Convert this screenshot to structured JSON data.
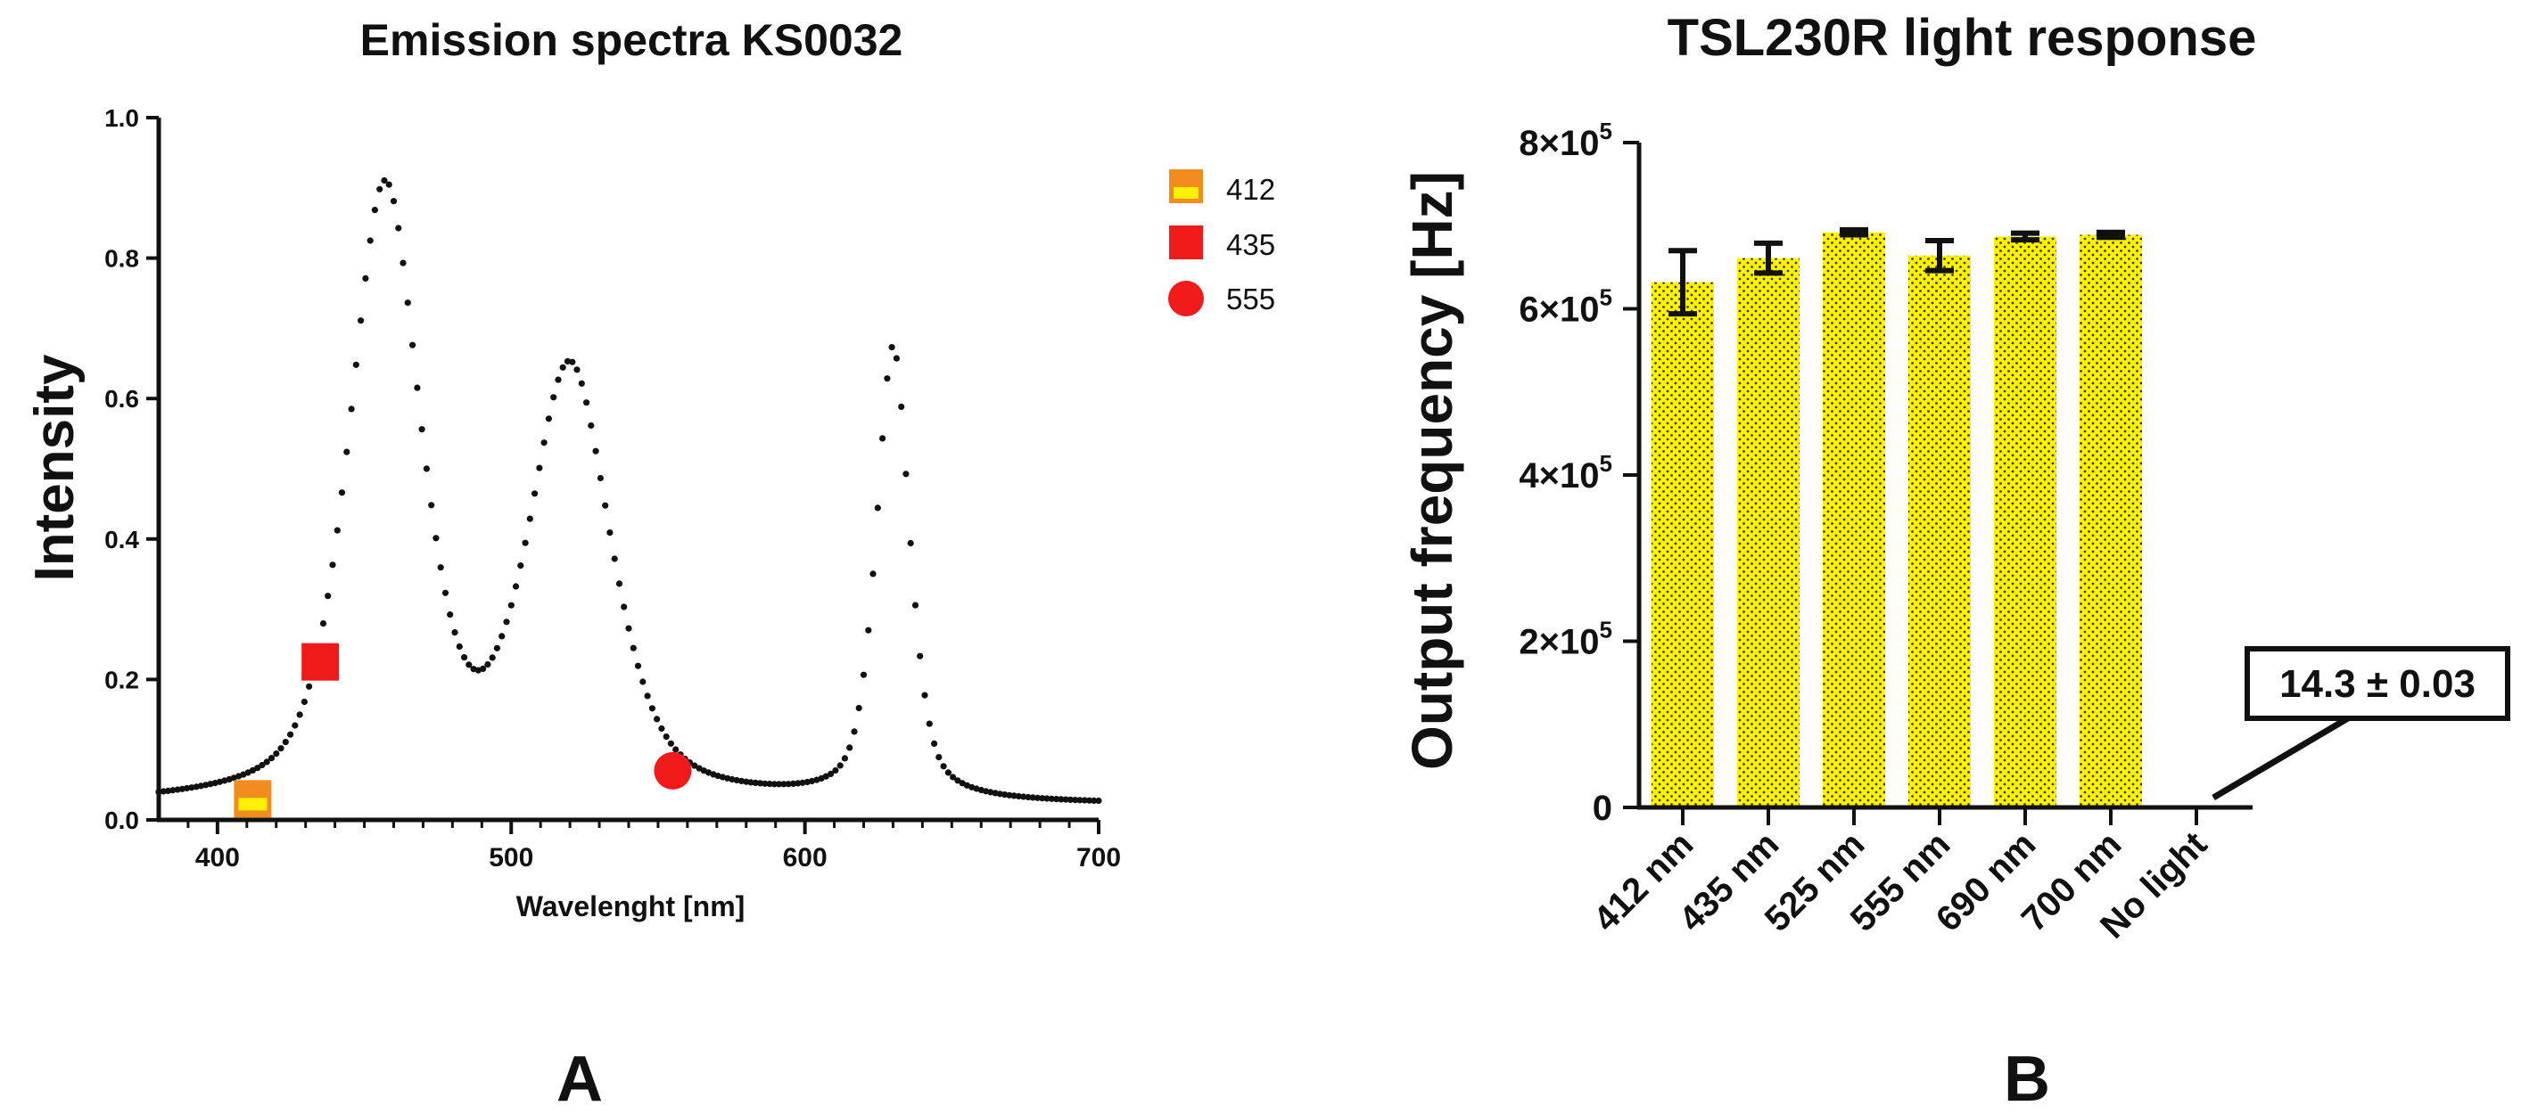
{
  "chart_data": [
    {
      "type": "scatter",
      "title": "Emission spectra KS0032",
      "xlabel": "Wavelenght [nm]",
      "ylabel": "Intensity",
      "xlim": [
        380,
        700
      ],
      "ylim": [
        0,
        1.0
      ],
      "x_ticks": [
        400,
        500,
        600,
        700
      ],
      "x_tick_labels": [
        "400",
        "500",
        "600",
        "700"
      ],
      "y_ticks": [
        0,
        0.2,
        0.4,
        0.6,
        0.8,
        1.0
      ],
      "y_tick_labels": [
        "0.0",
        "0.2",
        "0.4",
        "0.6",
        "0.8",
        "1.0"
      ],
      "spectrum": {
        "name": "KS0032 emission",
        "marker": "dot",
        "color": "#111111",
        "baseline": 0.02,
        "peaks": [
          {
            "center_nm": 457,
            "height": 0.87,
            "fwhm_nm": 28
          },
          {
            "center_nm": 520,
            "height": 0.61,
            "fwhm_nm": 32
          },
          {
            "center_nm": 630,
            "height": 0.645,
            "fwhm_nm": 13
          }
        ],
        "x_start": 380,
        "x_end": 700,
        "step_nm": 1.6
      },
      "legend": [
        {
          "label": "412",
          "marker": "square-split",
          "x": 412,
          "y": 0.03,
          "color": "#F28C1E",
          "fill2": "#FFF200"
        },
        {
          "label": "435",
          "marker": "square",
          "x": 435,
          "y": 0.225,
          "color": "#F01A1A"
        },
        {
          "label": "555",
          "marker": "circle",
          "x": 555,
          "y": 0.07,
          "color": "#F01A1A"
        }
      ],
      "legend_position": "top-right",
      "panel_label": "A"
    },
    {
      "type": "bar",
      "title": "TSL230R light response",
      "xlabel": "",
      "ylabel": "Output frequency [Hz]",
      "ylim": [
        0,
        800000
      ],
      "y_ticks": [
        0,
        200000,
        400000,
        600000,
        800000
      ],
      "y_tick_labels": [
        {
          "mantissa": "0",
          "exp": ""
        },
        {
          "mantissa": "2×10",
          "exp": "5"
        },
        {
          "mantissa": "4×10",
          "exp": "5"
        },
        {
          "mantissa": "6×10",
          "exp": "5"
        },
        {
          "mantissa": "8×10",
          "exp": "5"
        }
      ],
      "categories": [
        "412 nm",
        "435 nm",
        "525 nm",
        "555 nm",
        "690 nm",
        "700 nm",
        "No light"
      ],
      "values": [
        632000,
        661000,
        692000,
        664000,
        687000,
        689000,
        14.3
      ],
      "errors": [
        38000,
        18000,
        3000,
        18000,
        4000,
        3000,
        0.03
      ],
      "bar_color": "#FFF200",
      "bar_pattern": "dotted",
      "annotation": {
        "text": "14.3 ± 0.03",
        "target_category": "No light"
      },
      "panel_label": "B"
    }
  ]
}
